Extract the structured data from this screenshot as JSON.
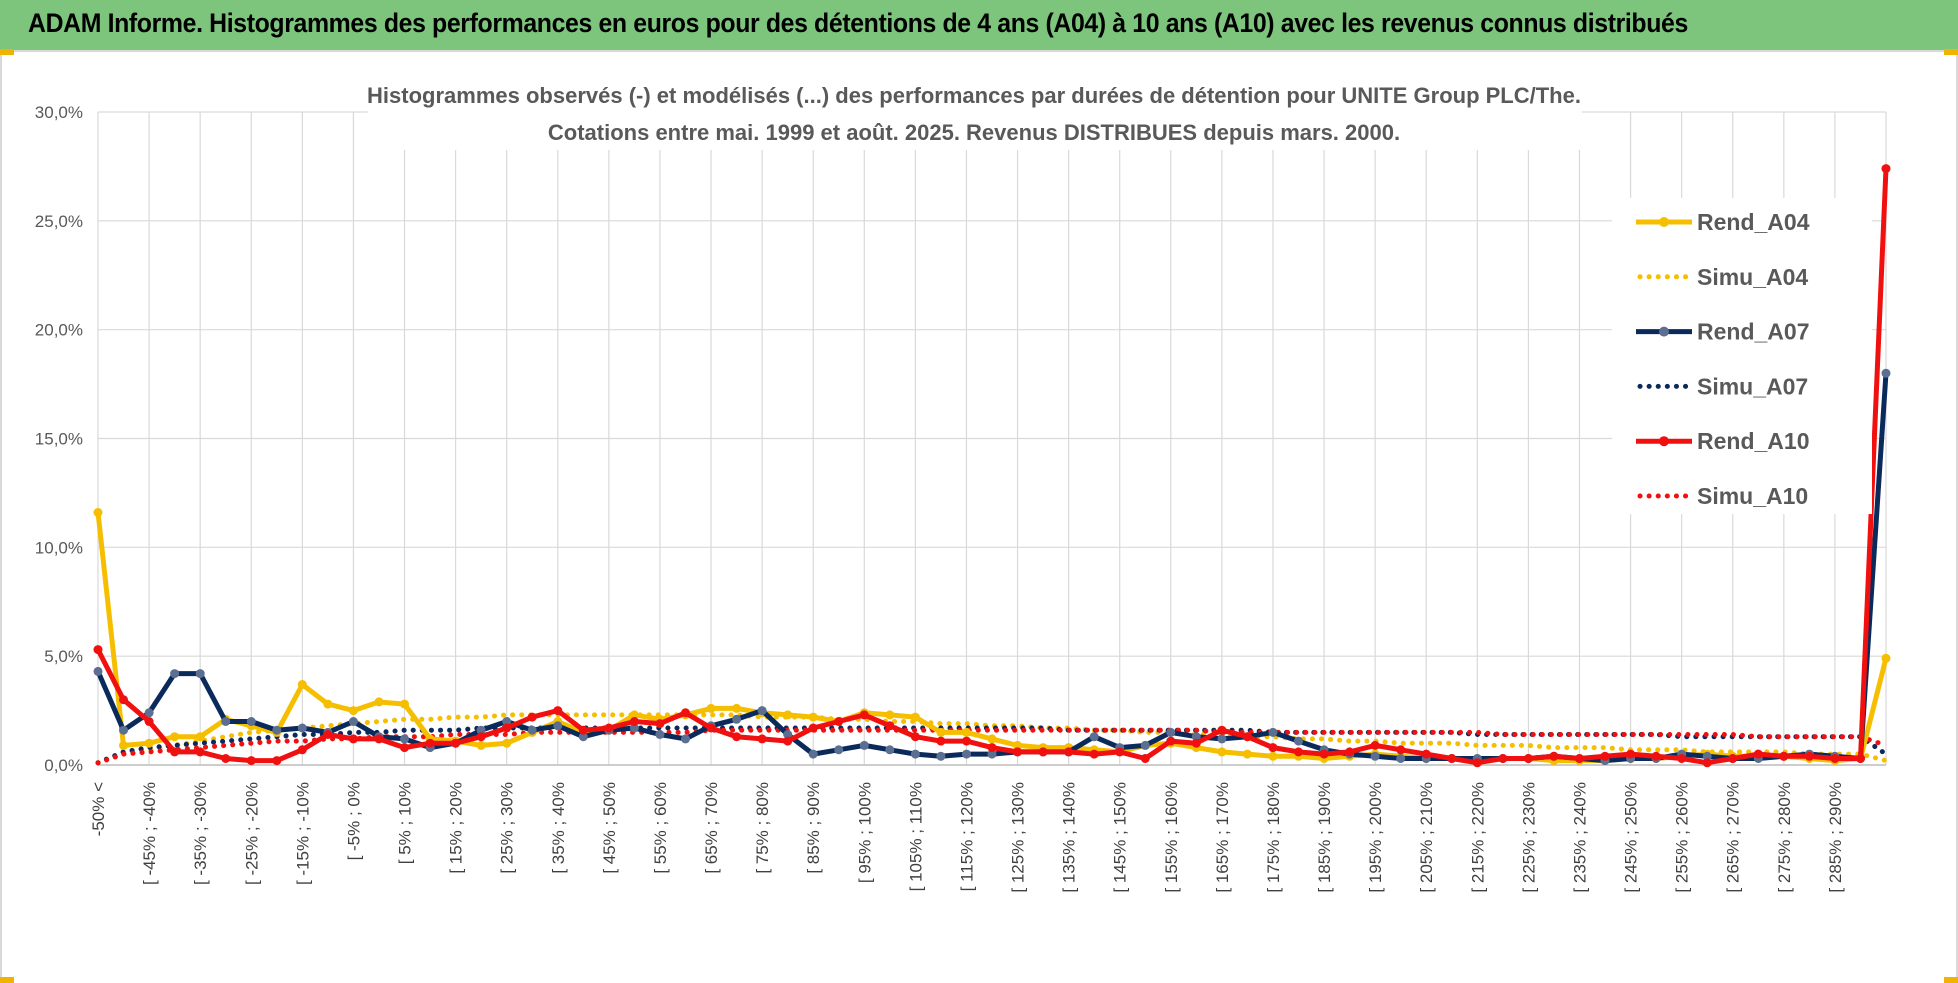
{
  "header": {
    "title": "ADAM Informe. Histogrammes des performances en euros pour des détentions de 4 ans (A04) à 10 ans (A10) avec les revenus connus distribués"
  },
  "colors": {
    "banner": "#7dc47d",
    "a04": "#f5bf00",
    "a07": "#0b2a5c",
    "a10": "#f01010",
    "grid": "#d9d9d9"
  },
  "chart_data": {
    "type": "line",
    "title_lines": [
      "Histogrammes observés (-) et modélisés (...) des performances par durées de détention pour UNITE Group PLC/The.",
      "Cotations entre mai. 1999 et août. 2025. Revenus DISTRIBUES depuis mars. 2000."
    ],
    "y_ticks": [
      "30,0%",
      "25,0%",
      "20,0%",
      "15,0%",
      "10,0%",
      "5,0%",
      "0,0%"
    ],
    "ylim": [
      0,
      30
    ],
    "grid": true,
    "legend_position": "top-right",
    "category_labels": [
      "-50% <",
      "[ -45% ; -40%",
      "[ -35% ; -30%",
      "[ -25% ; -20%",
      "[ -15% ; -10%",
      "[ -5% ; 0%",
      "[ 5% ; 10%",
      "[ 15% ; 20%",
      "[ 25% ; 30%",
      "[ 35% ; 40%",
      "[ 45% ; 50%",
      "[ 55% ; 60%",
      "[ 65% ; 70%",
      "[ 75% ; 80%",
      "[ 85% ; 90%",
      "[ 95% ; 100%",
      "[ 105% ; 110%",
      "[ 115% ; 120%",
      "[ 125% ; 130%",
      "[ 135% ; 140%",
      "[ 145% ; 150%",
      "[ 155% ; 160%",
      "[ 165% ; 170%",
      "[ 175% ; 180%",
      "[ 185% ; 190%",
      "[ 195% ; 200%",
      "[ 205% ; 210%",
      "[ 215% ; 220%",
      "[ 225% ; 230%",
      "[ 235% ; 240%",
      "[ 245% ; 250%",
      "[ 255% ; 260%",
      "[ 265% ; 270%",
      "[ 275% ; 280%",
      "[ 285% ; 290%"
    ],
    "n_points": 71,
    "series": [
      {
        "name": "Rend_A04",
        "style": "solid",
        "color": "#f5bf00",
        "values": [
          11.6,
          0.9,
          1.0,
          1.3,
          1.3,
          2.1,
          1.8,
          1.5,
          3.7,
          2.8,
          2.5,
          2.9,
          2.8,
          1.2,
          1.1,
          0.9,
          1.0,
          1.5,
          2.0,
          1.5,
          1.6,
          2.3,
          2.1,
          2.3,
          2.6,
          2.6,
          2.4,
          2.3,
          2.2,
          2.0,
          2.4,
          2.3,
          2.2,
          1.5,
          1.5,
          1.2,
          0.9,
          0.8,
          0.8,
          0.7,
          0.6,
          0.9,
          1.0,
          0.8,
          0.6,
          0.5,
          0.4,
          0.4,
          0.3,
          0.4,
          0.5,
          0.4,
          0.3,
          0.3,
          0.3,
          0.3,
          0.3,
          0.2,
          0.2,
          0.2,
          0.3,
          0.3,
          0.4,
          0.5,
          0.4,
          0.4,
          0.4,
          0.3,
          0.2,
          0.3,
          4.9
        ]
      },
      {
        "name": "Simu_A04",
        "style": "dotted",
        "color": "#f5bf00",
        "values": [
          0.1,
          0.5,
          0.7,
          0.9,
          1.1,
          1.3,
          1.5,
          1.6,
          1.7,
          1.8,
          1.9,
          2.0,
          2.1,
          2.1,
          2.2,
          2.2,
          2.3,
          2.3,
          2.3,
          2.3,
          2.3,
          2.3,
          2.3,
          2.3,
          2.3,
          2.3,
          2.2,
          2.2,
          2.2,
          2.1,
          2.1,
          2.0,
          2.0,
          1.9,
          1.9,
          1.8,
          1.8,
          1.7,
          1.7,
          1.6,
          1.6,
          1.5,
          1.5,
          1.4,
          1.4,
          1.3,
          1.3,
          1.2,
          1.2,
          1.1,
          1.1,
          1.0,
          1.0,
          1.0,
          0.9,
          0.9,
          0.9,
          0.8,
          0.8,
          0.8,
          0.7,
          0.7,
          0.7,
          0.6,
          0.6,
          0.6,
          0.6,
          0.5,
          0.5,
          0.5,
          0.2
        ]
      },
      {
        "name": "Rend_A07",
        "style": "solid",
        "color": "#0b2a5c",
        "values": [
          4.3,
          1.6,
          2.4,
          4.2,
          4.2,
          2.0,
          2.0,
          1.6,
          1.7,
          1.5,
          2.0,
          1.3,
          1.2,
          0.8,
          1.0,
          1.6,
          2.0,
          1.6,
          1.8,
          1.3,
          1.6,
          1.7,
          1.4,
          1.2,
          1.8,
          2.1,
          2.5,
          1.4,
          0.5,
          0.7,
          0.9,
          0.7,
          0.5,
          0.4,
          0.5,
          0.5,
          0.6,
          0.6,
          0.6,
          1.3,
          0.8,
          0.9,
          1.5,
          1.3,
          1.2,
          1.3,
          1.5,
          1.1,
          0.7,
          0.5,
          0.4,
          0.3,
          0.3,
          0.3,
          0.3,
          0.3,
          0.3,
          0.4,
          0.3,
          0.2,
          0.3,
          0.3,
          0.5,
          0.4,
          0.3,
          0.3,
          0.4,
          0.5,
          0.4,
          0.3,
          18.0
        ]
      },
      {
        "name": "Simu_A07",
        "style": "dotted",
        "color": "#0b2a5c",
        "values": [
          0.1,
          0.6,
          0.8,
          0.9,
          1.0,
          1.1,
          1.2,
          1.3,
          1.4,
          1.4,
          1.5,
          1.5,
          1.6,
          1.6,
          1.6,
          1.7,
          1.7,
          1.7,
          1.7,
          1.7,
          1.7,
          1.7,
          1.7,
          1.7,
          1.7,
          1.7,
          1.7,
          1.7,
          1.7,
          1.7,
          1.7,
          1.7,
          1.7,
          1.7,
          1.7,
          1.7,
          1.7,
          1.7,
          1.6,
          1.6,
          1.6,
          1.6,
          1.6,
          1.6,
          1.6,
          1.6,
          1.5,
          1.5,
          1.5,
          1.5,
          1.5,
          1.5,
          1.5,
          1.5,
          1.4,
          1.4,
          1.4,
          1.4,
          1.4,
          1.4,
          1.4,
          1.4,
          1.3,
          1.3,
          1.3,
          1.3,
          1.3,
          1.3,
          1.3,
          1.3,
          0.5
        ]
      },
      {
        "name": "Rend_A10",
        "style": "solid",
        "color": "#f01010",
        "values": [
          5.3,
          3.0,
          2.0,
          0.6,
          0.6,
          0.3,
          0.2,
          0.2,
          0.7,
          1.4,
          1.2,
          1.2,
          0.8,
          1.0,
          1.0,
          1.3,
          1.7,
          2.2,
          2.5,
          1.6,
          1.7,
          2.0,
          1.9,
          2.4,
          1.7,
          1.3,
          1.2,
          1.1,
          1.7,
          2.0,
          2.3,
          1.8,
          1.3,
          1.1,
          1.1,
          0.8,
          0.6,
          0.6,
          0.6,
          0.5,
          0.6,
          0.3,
          1.1,
          1.0,
          1.6,
          1.3,
          0.8,
          0.6,
          0.5,
          0.6,
          0.9,
          0.7,
          0.5,
          0.3,
          0.1,
          0.3,
          0.3,
          0.4,
          0.3,
          0.4,
          0.5,
          0.4,
          0.3,
          0.1,
          0.3,
          0.5,
          0.4,
          0.4,
          0.3,
          0.3,
          27.4
        ]
      },
      {
        "name": "Simu_A10",
        "style": "dotted",
        "color": "#f01010",
        "values": [
          0.1,
          0.5,
          0.6,
          0.7,
          0.8,
          0.9,
          1.0,
          1.1,
          1.1,
          1.2,
          1.2,
          1.3,
          1.3,
          1.3,
          1.4,
          1.4,
          1.4,
          1.5,
          1.5,
          1.5,
          1.5,
          1.5,
          1.5,
          1.5,
          1.6,
          1.6,
          1.6,
          1.6,
          1.6,
          1.6,
          1.6,
          1.6,
          1.6,
          1.6,
          1.6,
          1.6,
          1.6,
          1.6,
          1.6,
          1.6,
          1.6,
          1.6,
          1.6,
          1.6,
          1.5,
          1.5,
          1.5,
          1.5,
          1.5,
          1.5,
          1.5,
          1.5,
          1.5,
          1.5,
          1.5,
          1.4,
          1.4,
          1.4,
          1.4,
          1.4,
          1.4,
          1.4,
          1.4,
          1.4,
          1.4,
          1.3,
          1.3,
          1.3,
          1.3,
          1.3,
          0.9
        ]
      }
    ]
  }
}
